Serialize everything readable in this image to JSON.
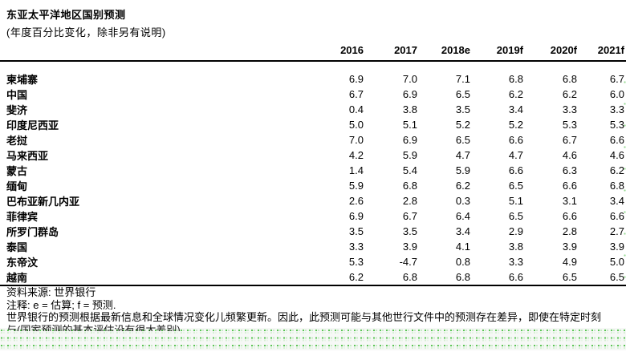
{
  "title": "东亚太平洋地区国别预测",
  "subtitle": "(年度百分比变化，除非另有说明)",
  "table": {
    "year_headers": [
      "2016",
      "2017",
      "2018e",
      "2019f",
      "2020f",
      "2021f"
    ],
    "rows": [
      {
        "country": "柬埔寨",
        "values": [
          "6.9",
          "7.0",
          "7.1",
          "6.8",
          "6.8",
          "6.7"
        ]
      },
      {
        "country": "中国",
        "values": [
          "6.7",
          "6.9",
          "6.5",
          "6.2",
          "6.2",
          "6.0"
        ]
      },
      {
        "country": "斐济",
        "values": [
          "0.4",
          "3.8",
          "3.5",
          "3.4",
          "3.3",
          "3.3"
        ]
      },
      {
        "country": "印度尼西亚",
        "values": [
          "5.0",
          "5.1",
          "5.2",
          "5.2",
          "5.3",
          "5.3"
        ]
      },
      {
        "country": "老挝",
        "values": [
          "7.0",
          "6.9",
          "6.5",
          "6.6",
          "6.7",
          "6.6"
        ]
      },
      {
        "country": "马来西亚",
        "values": [
          "4.2",
          "5.9",
          "4.7",
          "4.7",
          "4.6",
          "4.6"
        ]
      },
      {
        "country": "蒙古",
        "values": [
          "1.4",
          "5.4",
          "5.9",
          "6.6",
          "6.3",
          "6.2"
        ]
      },
      {
        "country": "缅甸",
        "values": [
          "5.9",
          "6.8",
          "6.2",
          "6.5",
          "6.6",
          "6.8"
        ]
      },
      {
        "country": "巴布亚新几内亚",
        "values": [
          "2.6",
          "2.8",
          "0.3",
          "5.1",
          "3.1",
          "3.4"
        ]
      },
      {
        "country": "菲律宾",
        "values": [
          "6.9",
          "6.7",
          "6.4",
          "6.5",
          "6.6",
          "6.6"
        ]
      },
      {
        "country": "所罗门群岛",
        "values": [
          "3.5",
          "3.5",
          "3.4",
          "2.9",
          "2.8",
          "2.7"
        ]
      },
      {
        "country": "泰国",
        "values": [
          "3.3",
          "3.9",
          "4.1",
          "3.8",
          "3.9",
          "3.9"
        ]
      },
      {
        "country": "东帝汶",
        "values": [
          "5.3",
          "-4.7",
          "0.8",
          "3.3",
          "4.9",
          "5.0"
        ]
      },
      {
        "country": "越南",
        "values": [
          "6.2",
          "6.8",
          "6.8",
          "6.6",
          "6.5",
          "6.5"
        ]
      }
    ]
  },
  "footer": {
    "source": "资料来源: 世界银行",
    "note": "注释: e = 估算; f = 预测.",
    "disclaimer": "世界银行的预测根据最新信息和全球情况变化儿频繁更新。因此，此预测可能与其他世行文件中的预测存在差异，即使在特定时刻",
    "disclaimer_partial": "与(国家预测的基本评估没有很大差别)"
  },
  "colors": {
    "table_rule": "#000000",
    "artifact_green": "#54c24d",
    "artifact_green_light": "#d5efd3"
  }
}
